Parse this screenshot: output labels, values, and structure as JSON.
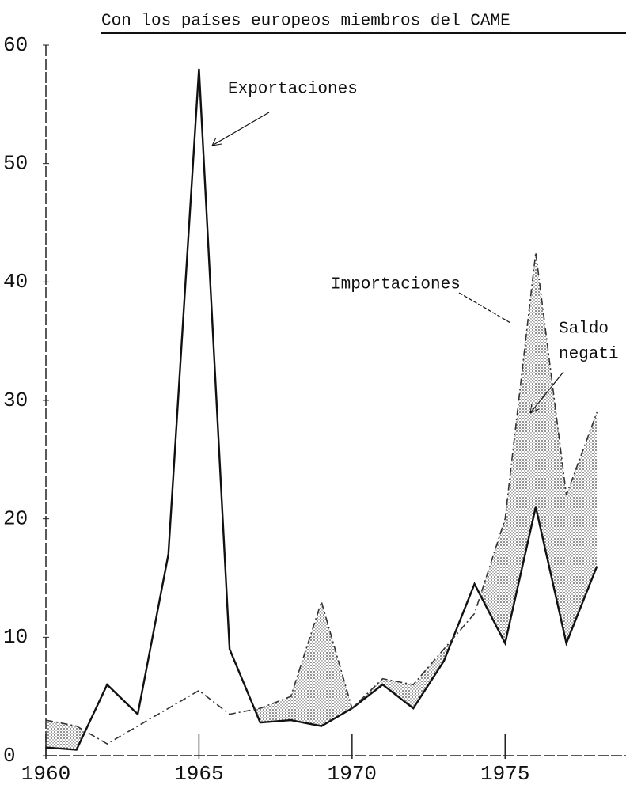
{
  "chart_data": {
    "type": "line",
    "title": "Con los países europeos miembros del CAME",
    "x": [
      1960,
      1961,
      1962,
      1963,
      1964,
      1965,
      1966,
      1967,
      1968,
      1969,
      1970,
      1971,
      1972,
      1973,
      1974,
      1975,
      1976,
      1977,
      1978
    ],
    "series": [
      {
        "name": "Exportaciones",
        "color": "#111111",
        "dash": "solid",
        "values": [
          0.7,
          0.5,
          6,
          3.5,
          17,
          58,
          9,
          2.8,
          3,
          2.5,
          4,
          6,
          4,
          8,
          14.5,
          9.5,
          21,
          9.5,
          16
        ]
      },
      {
        "name": "Importaciones",
        "color": "#333333",
        "dash": "dashed",
        "values": [
          3,
          2.5,
          1,
          2.5,
          4,
          5.5,
          3.5,
          4,
          5,
          13,
          4,
          6.5,
          6,
          9,
          12,
          20,
          42.5,
          22,
          29
        ]
      }
    ],
    "annotations": [
      "Saldo",
      "negati"
    ],
    "xlim": [
      1960,
      1979
    ],
    "xticks": [
      1960,
      1965,
      1970,
      1975
    ],
    "ylim": [
      0,
      60
    ],
    "yticks": [
      0,
      10,
      20,
      30,
      40,
      50,
      60
    ]
  }
}
